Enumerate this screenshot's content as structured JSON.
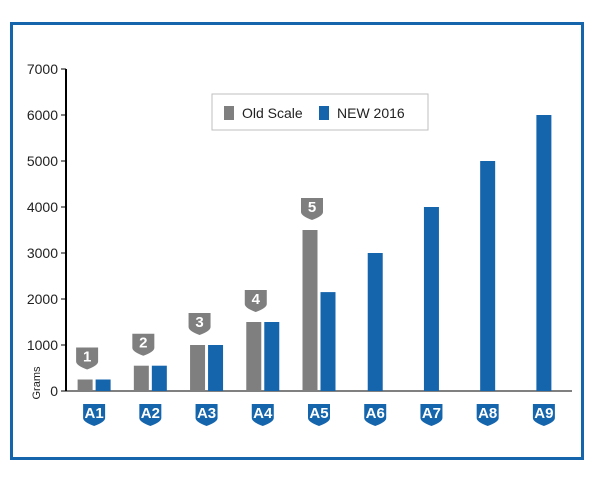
{
  "colors": {
    "old": "#7f7f7f",
    "new": "#1565ad",
    "frame": "#1565ad",
    "axis": "#000000"
  },
  "chart_data": {
    "type": "bar",
    "categories": [
      "A1",
      "A2",
      "A3",
      "A4",
      "A5",
      "A6",
      "A7",
      "A8",
      "A9"
    ],
    "series": [
      {
        "name": "Old Scale",
        "values": [
          250,
          550,
          1000,
          1500,
          3500,
          null,
          null,
          null,
          null
        ]
      },
      {
        "name": "NEW 2016",
        "values": [
          250,
          550,
          1000,
          1500,
          2150,
          3000,
          4000,
          5000,
          6000
        ]
      }
    ],
    "old_scale_markers": [
      "1",
      "2",
      "3",
      "4",
      "5"
    ],
    "ylabel": "Grams",
    "ylim": [
      0,
      7000
    ],
    "yticks": [
      0,
      1000,
      2000,
      3000,
      4000,
      5000,
      6000,
      7000
    ],
    "legend_position": "top-center",
    "grid": false
  }
}
